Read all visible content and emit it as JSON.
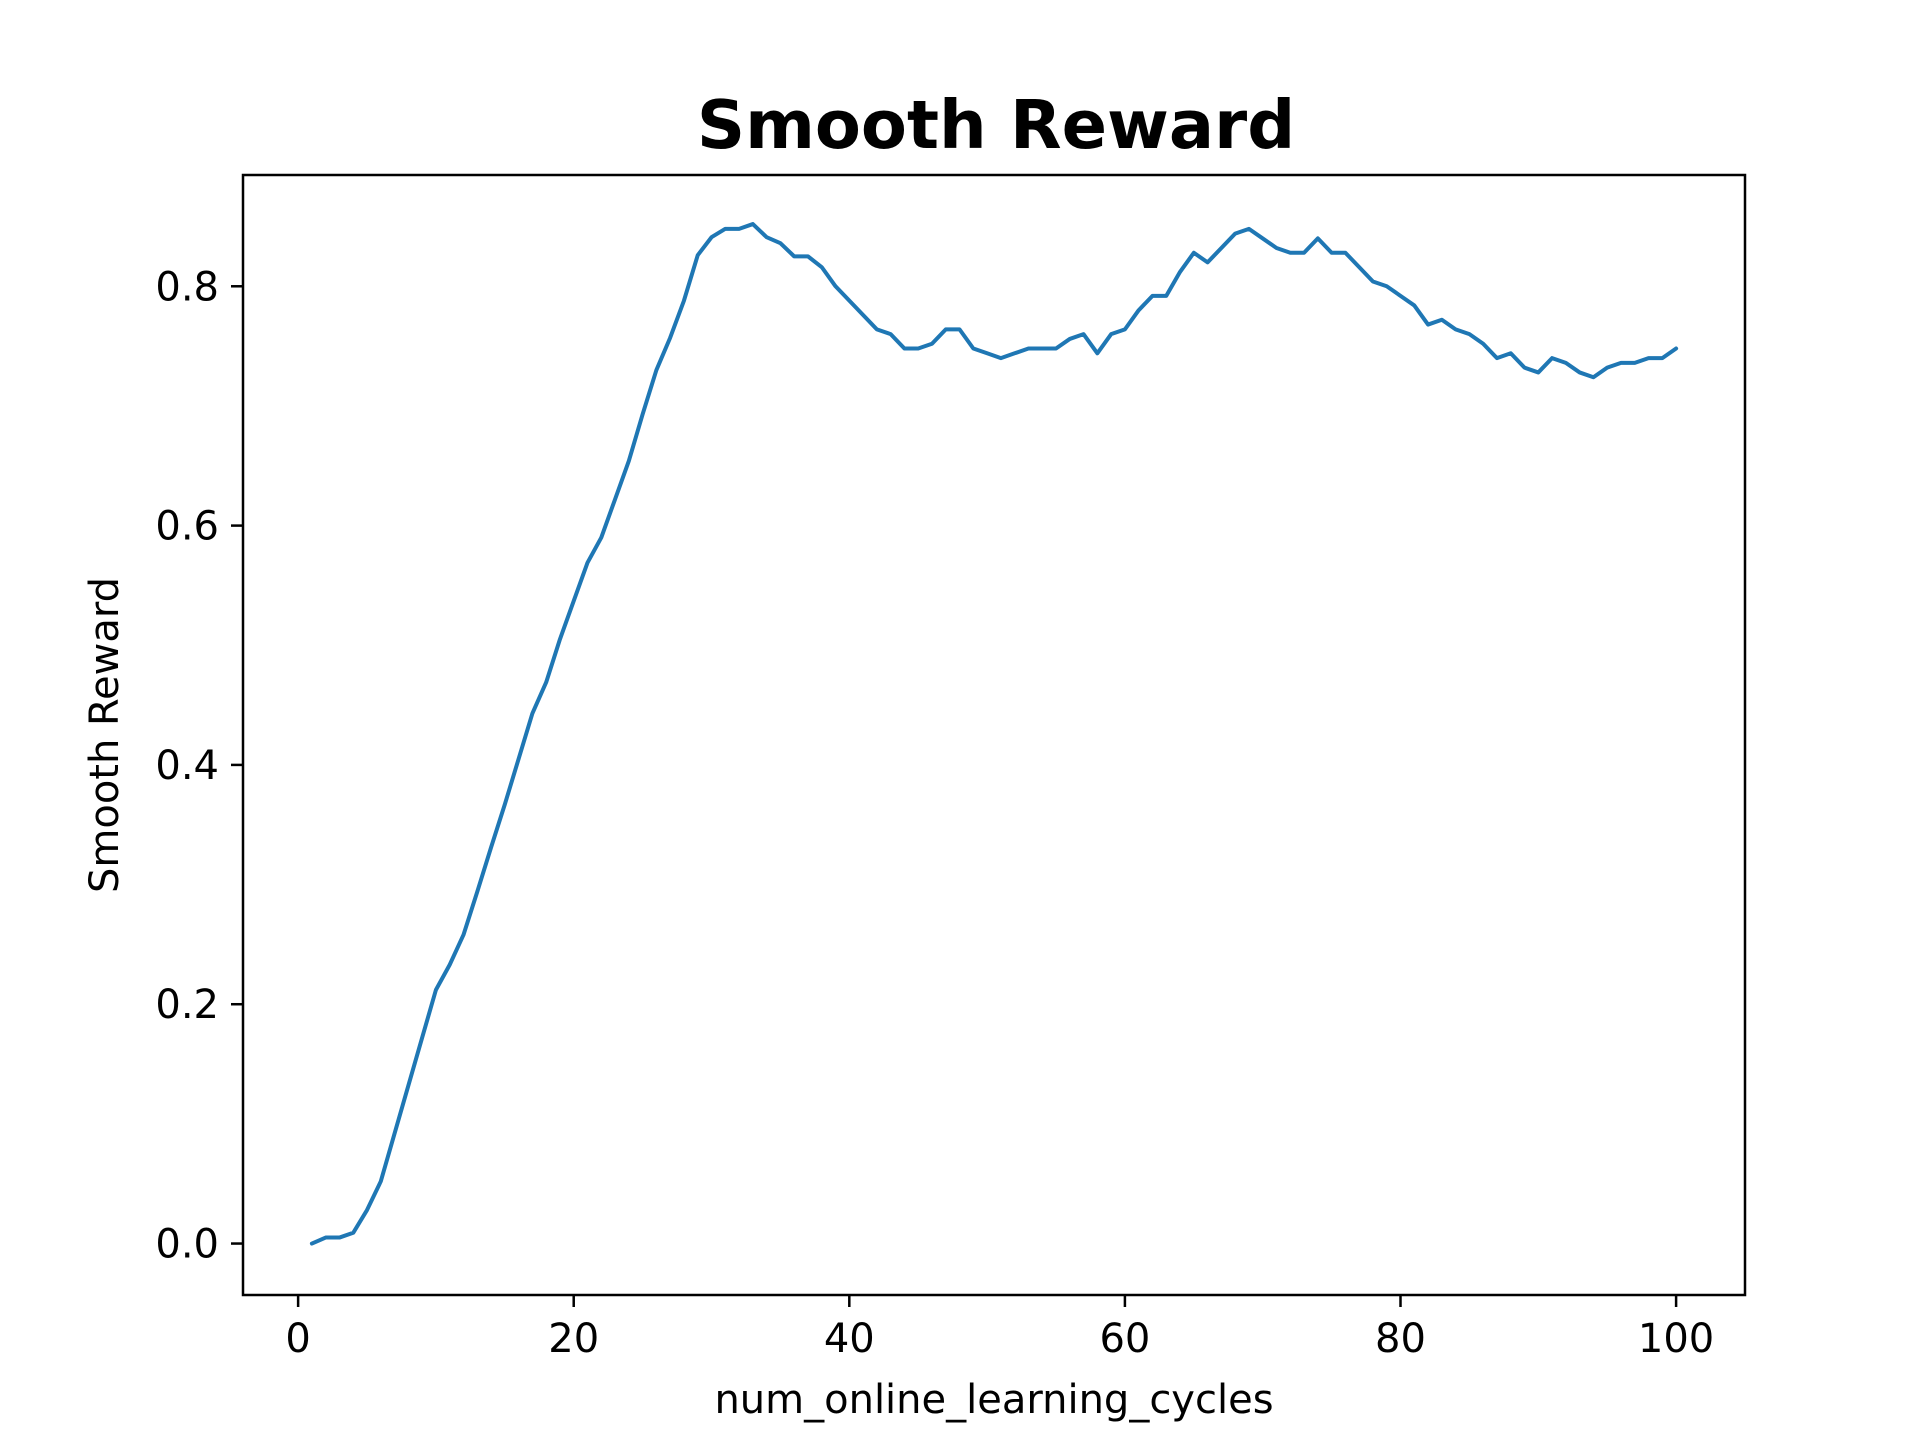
{
  "chart_data": {
    "type": "line",
    "title": "Smooth Reward",
    "xlabel": "num_online_learning_cycles",
    "ylabel": "Smooth Reward",
    "xlim": [
      -4,
      105
    ],
    "ylim": [
      -0.043,
      0.893
    ],
    "xticks": [
      0,
      20,
      40,
      60,
      80,
      100
    ],
    "xtick_labels": [
      "0",
      "20",
      "40",
      "60",
      "80",
      "100"
    ],
    "yticks": [
      0.0,
      0.2,
      0.4,
      0.6,
      0.8
    ],
    "ytick_labels": [
      "0.0",
      "0.2",
      "0.4",
      "0.6",
      "0.8"
    ],
    "grid": false,
    "legend": "none",
    "series": [
      {
        "color": "#1f77b4",
        "x": [
          1,
          2,
          3,
          4,
          5,
          6,
          7,
          8,
          9,
          10,
          11,
          12,
          13,
          14,
          15,
          16,
          17,
          18,
          19,
          20,
          21,
          22,
          23,
          24,
          25,
          26,
          27,
          28,
          29,
          30,
          31,
          32,
          33,
          34,
          35,
          36,
          37,
          38,
          39,
          40,
          41,
          42,
          43,
          44,
          45,
          46,
          47,
          48,
          49,
          50,
          51,
          52,
          53,
          54,
          55,
          56,
          57,
          58,
          59,
          60,
          61,
          62,
          63,
          64,
          65,
          66,
          67,
          68,
          69,
          70,
          71,
          72,
          73,
          74,
          75,
          76,
          77,
          78,
          79,
          80,
          81,
          82,
          83,
          84,
          85,
          86,
          87,
          88,
          89,
          90,
          91,
          92,
          93,
          94,
          95,
          96,
          97,
          98,
          99,
          100
        ],
        "y": [
          0.0,
          0.005,
          0.005,
          0.009,
          0.028,
          0.052,
          0.092,
          0.132,
          0.172,
          0.212,
          0.233,
          0.258,
          0.294,
          0.331,
          0.367,
          0.405,
          0.443,
          0.469,
          0.505,
          0.537,
          0.569,
          0.59,
          0.622,
          0.654,
          0.693,
          0.73,
          0.757,
          0.788,
          0.826,
          0.841,
          0.848,
          0.848,
          0.852,
          0.841,
          0.836,
          0.825,
          0.825,
          0.816,
          0.8,
          0.788,
          0.776,
          0.764,
          0.76,
          0.748,
          0.748,
          0.752,
          0.764,
          0.764,
          0.748,
          0.744,
          0.74,
          0.744,
          0.748,
          0.748,
          0.748,
          0.756,
          0.76,
          0.744,
          0.76,
          0.764,
          0.78,
          0.792,
          0.792,
          0.812,
          0.828,
          0.82,
          0.832,
          0.844,
          0.848,
          0.84,
          0.832,
          0.828,
          0.828,
          0.84,
          0.828,
          0.828,
          0.816,
          0.804,
          0.8,
          0.792,
          0.784,
          0.768,
          0.772,
          0.764,
          0.76,
          0.752,
          0.74,
          0.744,
          0.732,
          0.728,
          0.74,
          0.736,
          0.728,
          0.724,
          0.732,
          0.736,
          0.736,
          0.74,
          0.74,
          0.748
        ]
      }
    ]
  }
}
